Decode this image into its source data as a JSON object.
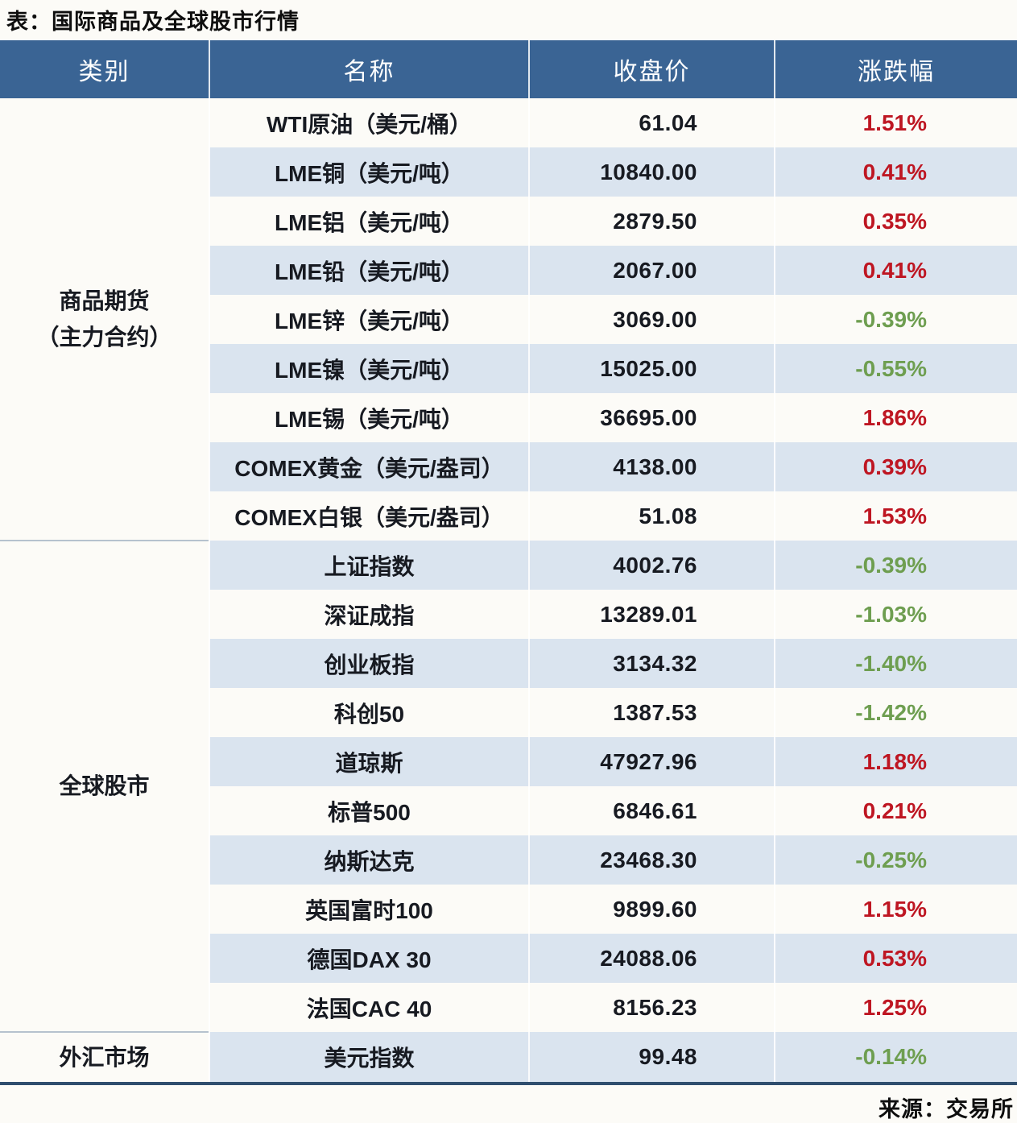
{
  "page": {
    "title": "表：国际商品及全球股市行情",
    "source": "来源：交易所"
  },
  "chart_data": {
    "type": "table",
    "title": "表：国际商品及全球股市行情",
    "columns": [
      "类别",
      "名称",
      "收盘价",
      "涨跌幅"
    ],
    "sections": [
      {
        "category": "商品期货（主力合约）",
        "category_lines": [
          "商品期货",
          "（主力合约）"
        ],
        "rows": [
          [
            "WTI原油（美元/桶）",
            "61.04",
            "1.51%"
          ],
          [
            "LME铜（美元/吨）",
            "10840.00",
            "0.41%"
          ],
          [
            "LME铝（美元/吨）",
            "2879.50",
            "0.35%"
          ],
          [
            "LME铅（美元/吨）",
            "2067.00",
            "0.41%"
          ],
          [
            "LME锌（美元/吨）",
            "3069.00",
            "-0.39%"
          ],
          [
            "LME镍（美元/吨）",
            "15025.00",
            "-0.55%"
          ],
          [
            "LME锡（美元/吨）",
            "36695.00",
            "1.86%"
          ],
          [
            "COMEX黄金（美元/盎司）",
            "4138.00",
            "0.39%"
          ],
          [
            "COMEX白银（美元/盎司）",
            "51.08",
            "1.53%"
          ]
        ]
      },
      {
        "category": "全球股市",
        "category_lines": [
          "全球股市"
        ],
        "rows": [
          [
            "上证指数",
            "4002.76",
            "-0.39%"
          ],
          [
            "深证成指",
            "13289.01",
            "-1.03%"
          ],
          [
            "创业板指",
            "3134.32",
            "-1.40%"
          ],
          [
            "科创50",
            "1387.53",
            "-1.42%"
          ],
          [
            "道琼斯",
            "47927.96",
            "1.18%"
          ],
          [
            "标普500",
            "6846.61",
            "0.21%"
          ],
          [
            "纳斯达克",
            "23468.30",
            "-0.25%"
          ],
          [
            "英国富时100",
            "9899.60",
            "1.15%"
          ],
          [
            "德国DAX 30",
            "24088.06",
            "0.53%"
          ],
          [
            "法国CAC 40",
            "8156.23",
            "1.25%"
          ]
        ]
      },
      {
        "category": "外汇市场",
        "category_lines": [
          "外汇市场"
        ],
        "rows": [
          [
            "美元指数",
            "99.48",
            "-0.14%"
          ]
        ]
      }
    ],
    "source": "来源：交易所"
  },
  "colors": {
    "header_bg": "#3A6494",
    "row_alt": "#DAE4EF",
    "row_base": "#FCFBF7",
    "up": "#BE1622",
    "down": "#6E9E50",
    "divider": "#B6C2CE",
    "bottom_rule": "#2F4E6E",
    "header_text": "#FFFFFF",
    "body_text": "#171A21"
  }
}
